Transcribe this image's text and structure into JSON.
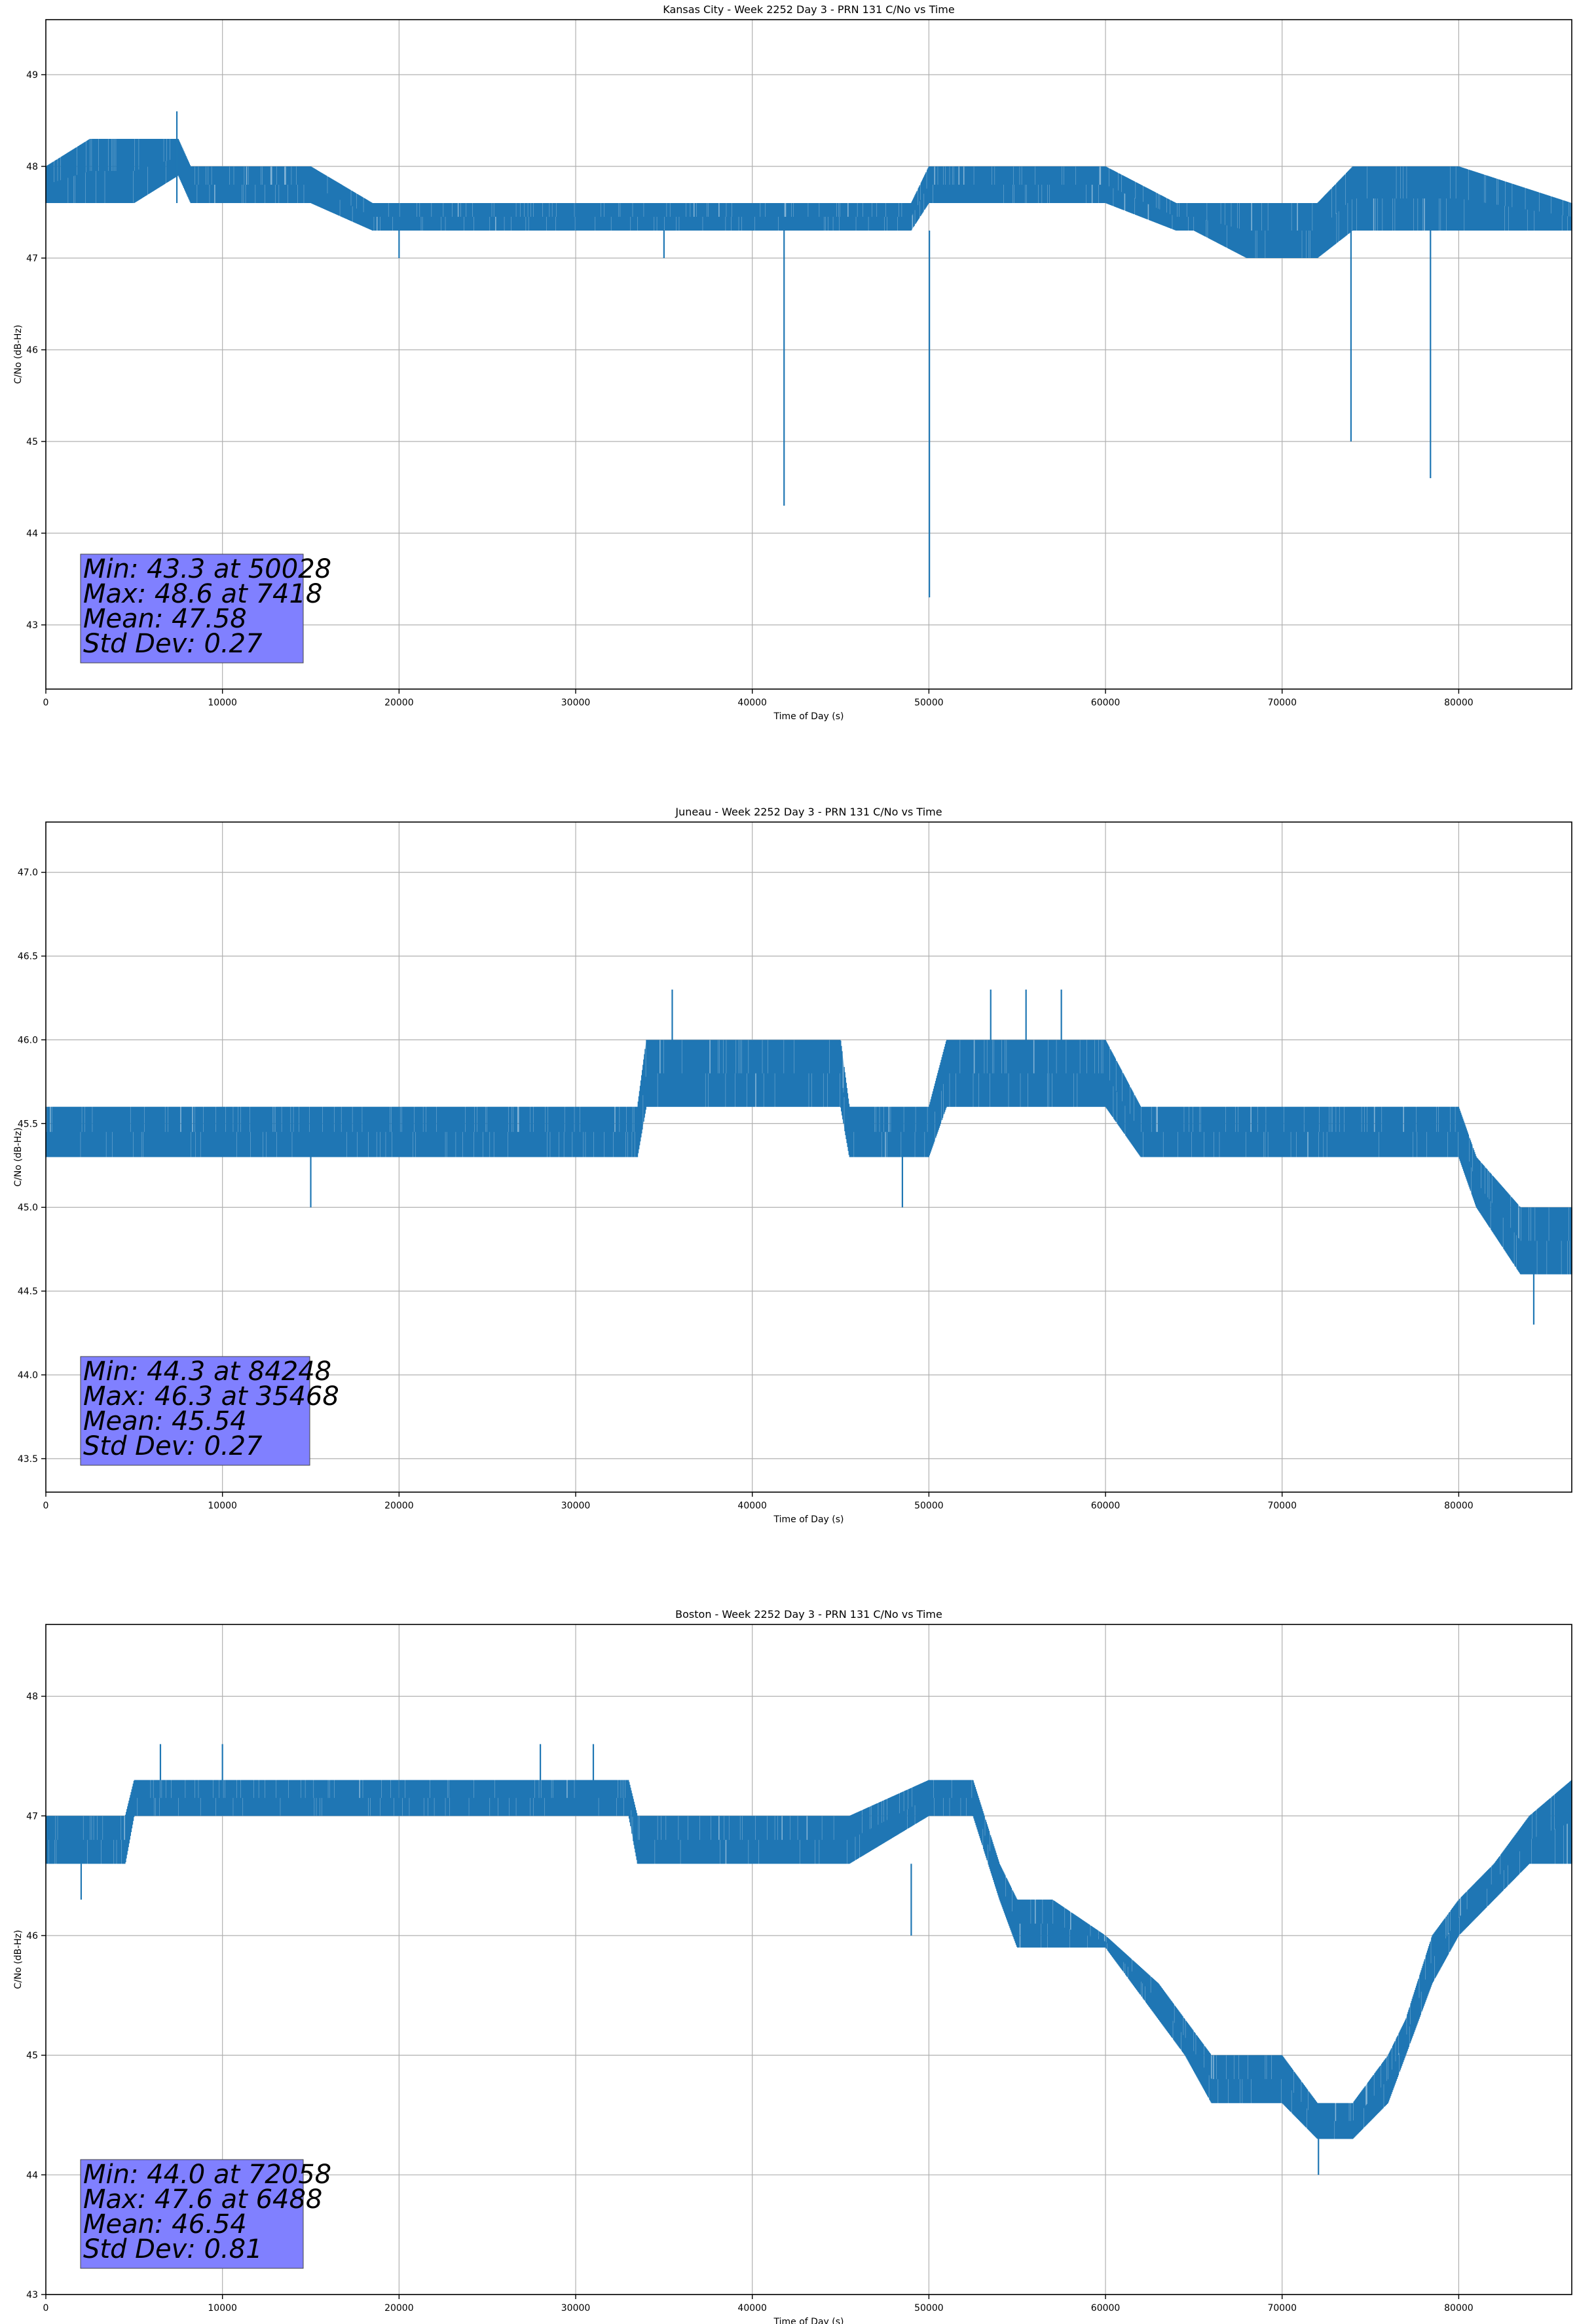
{
  "chart_data": [
    {
      "type": "line",
      "title": "Kansas City - Week 2252 Day 3 - PRN 131 C/No vs Time",
      "xlabel": "Time of Day (s)",
      "ylabel": "C/No (dB-Hz)",
      "xlim": [
        0,
        86400
      ],
      "ylim": [
        42.3,
        49.6
      ],
      "xticks": [
        0,
        10000,
        20000,
        30000,
        40000,
        50000,
        60000,
        70000,
        80000
      ],
      "yticks": [
        43,
        44,
        45,
        46,
        47,
        48,
        49
      ],
      "ytick_labels": [
        "43",
        "44",
        "45",
        "46",
        "47",
        "48",
        "49"
      ],
      "grid": true,
      "series_color": "#1f77b4",
      "band": {
        "x": [
          0,
          2500,
          5000,
          7500,
          8200,
          10000,
          15000,
          18500,
          20000,
          25000,
          30000,
          35000,
          40000,
          45000,
          49000,
          50000,
          55000,
          60000,
          64000,
          65000,
          68000,
          70000,
          72000,
          74000,
          75000,
          80000,
          86400
        ],
        "low": [
          47.6,
          47.6,
          47.6,
          47.9,
          47.6,
          47.6,
          47.6,
          47.3,
          47.3,
          47.3,
          47.3,
          47.3,
          47.3,
          47.3,
          47.3,
          47.6,
          47.6,
          47.6,
          47.3,
          47.3,
          47.0,
          47.0,
          47.0,
          47.3,
          47.3,
          47.3,
          47.3
        ],
        "high": [
          48.0,
          48.3,
          48.3,
          48.3,
          48.0,
          48.0,
          48.0,
          47.6,
          47.6,
          47.6,
          47.6,
          47.6,
          47.6,
          47.6,
          47.6,
          48.0,
          48.0,
          48.0,
          47.6,
          47.6,
          47.6,
          47.6,
          47.6,
          48.0,
          48.0,
          48.0,
          47.6
        ]
      },
      "spikes": [
        [
          7418,
          47.6,
          48.6
        ],
        [
          20000,
          47.0,
          47.3
        ],
        [
          35000,
          47.0,
          47.3
        ],
        [
          41800,
          44.3,
          47.3
        ],
        [
          50028,
          43.3,
          47.3
        ],
        [
          73900,
          45.0,
          47.3
        ],
        [
          78400,
          44.6,
          47.3
        ]
      ],
      "stats_box": [
        "Min: 43.3 at 50028",
        "Max: 48.6 at 7418",
        "Mean: 47.58",
        "Std Dev: 0.27"
      ],
      "stats_box_color": "#8080ff"
    },
    {
      "type": "line",
      "title": "Juneau - Week 2252 Day 3 - PRN 131 C/No vs Time",
      "xlabel": "Time of Day (s)",
      "ylabel": "C/No (dB-Hz)",
      "xlim": [
        0,
        86400
      ],
      "ylim": [
        43.3,
        47.3
      ],
      "xticks": [
        0,
        10000,
        20000,
        30000,
        40000,
        50000,
        60000,
        70000,
        80000
      ],
      "yticks": [
        43.5,
        44.0,
        44.5,
        45.0,
        45.5,
        46.0,
        46.5,
        47.0
      ],
      "ytick_labels": [
        "43.5",
        "44.0",
        "44.5",
        "45.0",
        "45.5",
        "46.0",
        "46.5",
        "47.0"
      ],
      "grid": true,
      "series_color": "#1f77b4",
      "band": {
        "x": [
          0,
          5000,
          10000,
          15000,
          20000,
          25000,
          30000,
          33500,
          34000,
          40000,
          45000,
          45500,
          50000,
          51000,
          55000,
          60000,
          62000,
          65000,
          70000,
          75000,
          80000,
          81000,
          83500,
          86400
        ],
        "low": [
          45.3,
          45.3,
          45.3,
          45.3,
          45.3,
          45.3,
          45.3,
          45.3,
          45.6,
          45.6,
          45.6,
          45.3,
          45.3,
          45.6,
          45.6,
          45.6,
          45.3,
          45.3,
          45.3,
          45.3,
          45.3,
          45.0,
          44.6,
          44.6
        ],
        "high": [
          45.6,
          45.6,
          45.6,
          45.6,
          45.6,
          45.6,
          45.6,
          45.6,
          46.0,
          46.0,
          46.0,
          45.6,
          45.6,
          46.0,
          46.0,
          46.0,
          45.6,
          45.6,
          45.6,
          45.6,
          45.6,
          45.3,
          45.0,
          45.0
        ]
      },
      "spikes": [
        [
          35468,
          46.0,
          46.3
        ],
        [
          53500,
          46.0,
          46.3
        ],
        [
          55500,
          46.0,
          46.3
        ],
        [
          57500,
          46.0,
          46.3
        ],
        [
          84248,
          44.3,
          44.6
        ],
        [
          15000,
          45.0,
          45.3
        ],
        [
          48500,
          45.0,
          45.3
        ]
      ],
      "stats_box": [
        "Min: 44.3 at 84248",
        "Max: 46.3 at 35468",
        "Mean: 45.54",
        "Std Dev: 0.27"
      ],
      "stats_box_color": "#8080ff"
    },
    {
      "type": "line",
      "title": "Boston - Week 2252 Day 3 - PRN 131 C/No vs Time",
      "xlabel": "Time of Day (s)",
      "ylabel": "C/No (dB-Hz)",
      "xlim": [
        0,
        86400
      ],
      "ylim": [
        43.0,
        48.6
      ],
      "xticks": [
        0,
        10000,
        20000,
        30000,
        40000,
        50000,
        60000,
        70000,
        80000
      ],
      "yticks": [
        43,
        44,
        45,
        46,
        47,
        48
      ],
      "ytick_labels": [
        "43",
        "44",
        "45",
        "46",
        "47",
        "48"
      ],
      "grid": true,
      "series_color": "#1f77b4",
      "band": {
        "x": [
          0,
          4500,
          5000,
          10000,
          20000,
          30000,
          33000,
          33500,
          40000,
          45000,
          45500,
          50000,
          52500,
          54000,
          55000,
          57000,
          60000,
          63000,
          64500,
          66000,
          68000,
          70000,
          72000,
          74000,
          76000,
          77000,
          78500,
          80000,
          82000,
          84000,
          86400
        ],
        "low": [
          46.6,
          46.6,
          47.0,
          47.0,
          47.0,
          47.0,
          47.0,
          46.6,
          46.6,
          46.6,
          46.6,
          47.0,
          47.0,
          46.3,
          45.9,
          45.9,
          45.9,
          45.3,
          45.0,
          44.6,
          44.6,
          44.6,
          44.3,
          44.3,
          44.6,
          45.0,
          45.6,
          46.0,
          46.3,
          46.6,
          46.6
        ],
        "high": [
          47.0,
          47.0,
          47.3,
          47.3,
          47.3,
          47.3,
          47.3,
          47.0,
          47.0,
          47.0,
          47.0,
          47.3,
          47.3,
          46.6,
          46.3,
          46.3,
          46.0,
          45.6,
          45.3,
          45.0,
          45.0,
          45.0,
          44.6,
          44.6,
          45.0,
          45.3,
          46.0,
          46.3,
          46.6,
          47.0,
          47.3
        ]
      },
      "spikes": [
        [
          6488,
          47.3,
          47.6
        ],
        [
          10000,
          47.3,
          47.6
        ],
        [
          28000,
          47.3,
          47.6
        ],
        [
          31000,
          47.3,
          47.6
        ],
        [
          49000,
          46.0,
          46.6
        ],
        [
          72058,
          44.0,
          44.3
        ],
        [
          2000,
          46.3,
          46.6
        ]
      ],
      "stats_box": [
        "Min: 44.0 at 72058",
        "Max: 47.6 at 6488",
        "Mean: 46.54",
        "Std Dev: 0.81"
      ],
      "stats_box_color": "#8080ff"
    }
  ]
}
